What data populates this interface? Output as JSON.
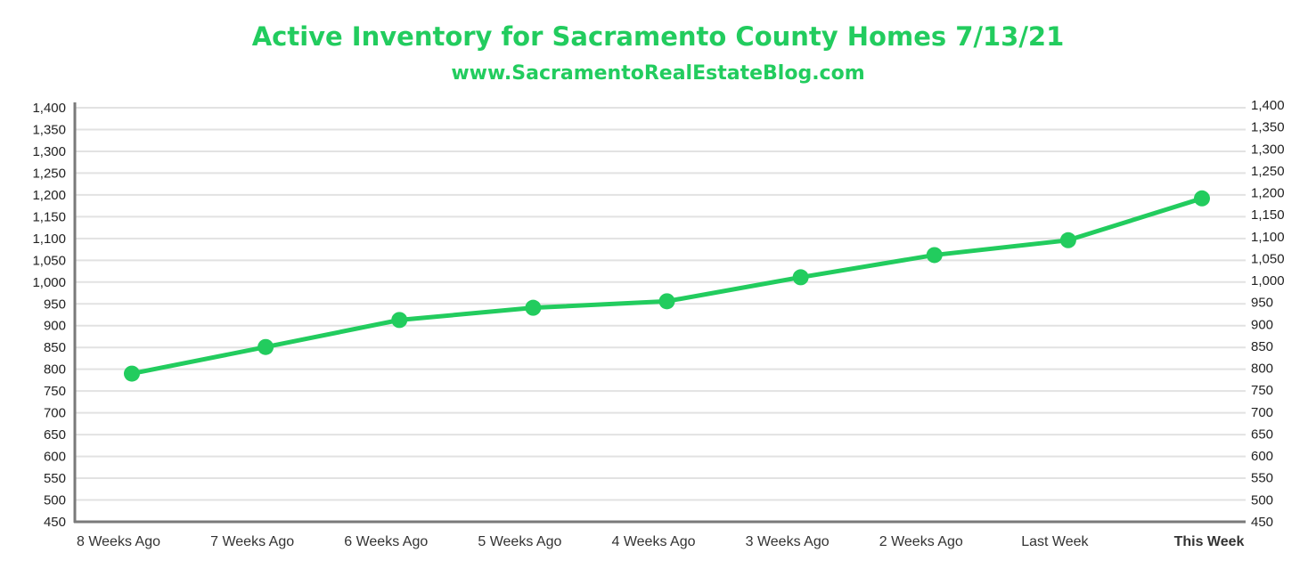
{
  "colors": {
    "accent": "#22cc5e",
    "grid": "#e2e2e2",
    "axis": "#7a7a7a",
    "text": "#222222"
  },
  "header": {
    "title": "Active Inventory for Sacramento County Homes 7/13/21",
    "subtitle": "www.SacramentoRealEstateBlog.com"
  },
  "chart_data": {
    "type": "line",
    "title": "Active Inventory for Sacramento County Homes 7/13/21",
    "subtitle": "www.SacramentoRealEstateBlog.com",
    "xlabel": "",
    "ylabel": "",
    "categories": [
      "8 Weeks Ago",
      "7 Weeks Ago",
      "6 Weeks Ago",
      "5 Weeks Ago",
      "4 Weeks Ago",
      "3 Weeks Ago",
      "2 Weeks Ago",
      "Last Week",
      "This Week"
    ],
    "highlight_category": "This Week",
    "series": [
      {
        "values": [
          790,
          851,
          913,
          941,
          956,
          1011,
          1062,
          1096,
          1192
        ]
      }
    ],
    "left_axis": {
      "ylim": [
        450,
        1400
      ],
      "ticks": [
        "450",
        "500",
        "550",
        "600",
        "650",
        "700",
        "750",
        "800",
        "850",
        "900",
        "950",
        "1,000",
        "1,050",
        "1,100",
        "1,150",
        "1,200",
        "1,250",
        "1,300",
        "1,350",
        "1,400"
      ]
    },
    "right_axis": {
      "ylim": [
        450,
        1400
      ],
      "ticks": [
        "450",
        "500",
        "550",
        "600",
        "650",
        "700",
        "750",
        "800",
        "850",
        "900",
        "950",
        "1,000",
        "1,050",
        "1,100",
        "1,150",
        "1,200",
        "1,250",
        "1,300",
        "1,350",
        "1,400"
      ]
    },
    "grid": true,
    "legend": "none"
  }
}
